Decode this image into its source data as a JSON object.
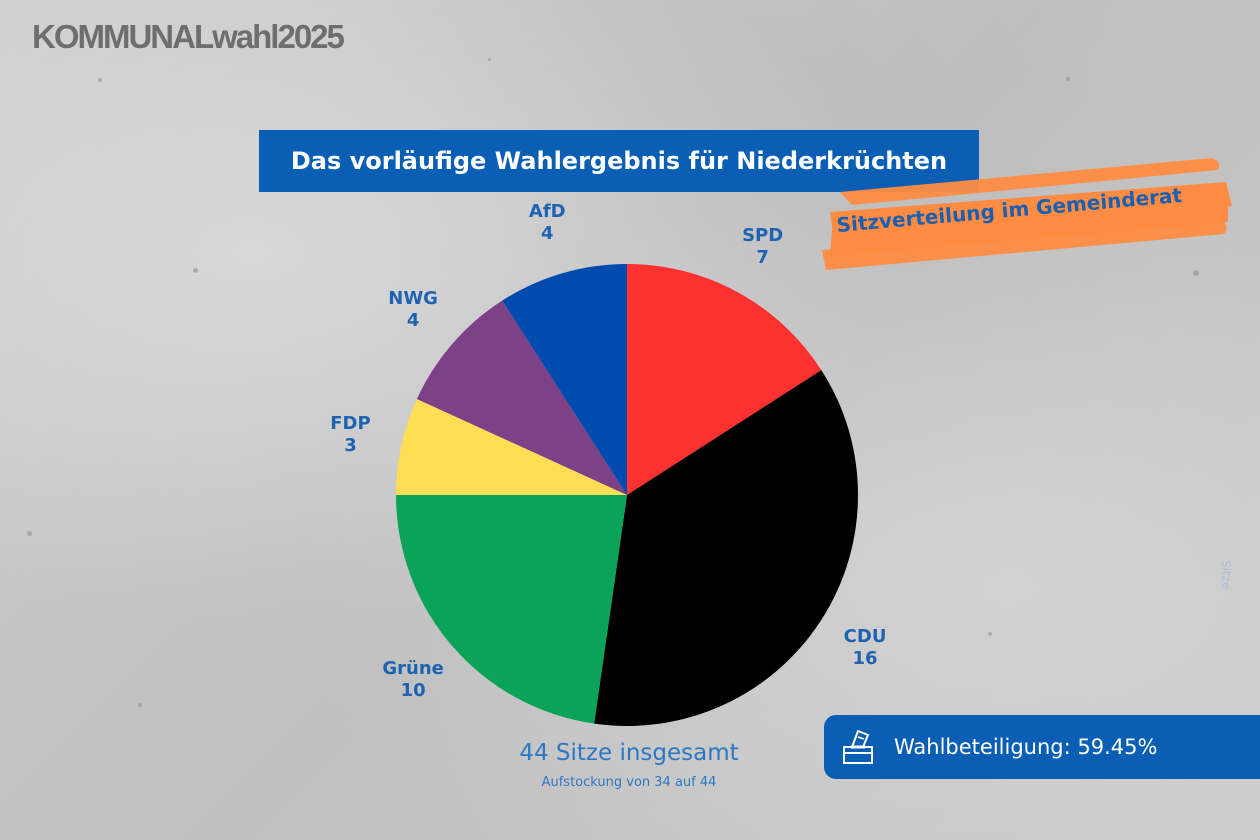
{
  "logo": {
    "text": "KOMMUNALwahl2025"
  },
  "title": "Das vorläufige Wahlergebnis für Niederkrüchten",
  "subtitle": "Sitzverteilung im Gemeinderat",
  "chart_data": {
    "type": "pie",
    "title": "Das vorläufige Wahlergebnis für Niederkrüchten",
    "subtitle": "Sitzverteilung im Gemeinderat",
    "categories": [
      "SPD",
      "CDU",
      "Grüne",
      "FDP",
      "NWG",
      "AfD"
    ],
    "values": [
      7,
      16,
      10,
      3,
      4,
      4
    ],
    "colors": [
      "#ff3030",
      "#000000",
      "#0aa358",
      "#ffdd55",
      "#7d4188",
      "#004bad"
    ],
    "label_color": "#1d63b1",
    "total_text": "44 Sitze insgesamt",
    "total_subtext": "Aufstockung von 34 auf 44",
    "side_label": "Sitze"
  },
  "turnout": {
    "label": "Wahlbeteiligung: 59.45%",
    "icon": "ballot-box-icon",
    "color": "#0a5fb4"
  }
}
